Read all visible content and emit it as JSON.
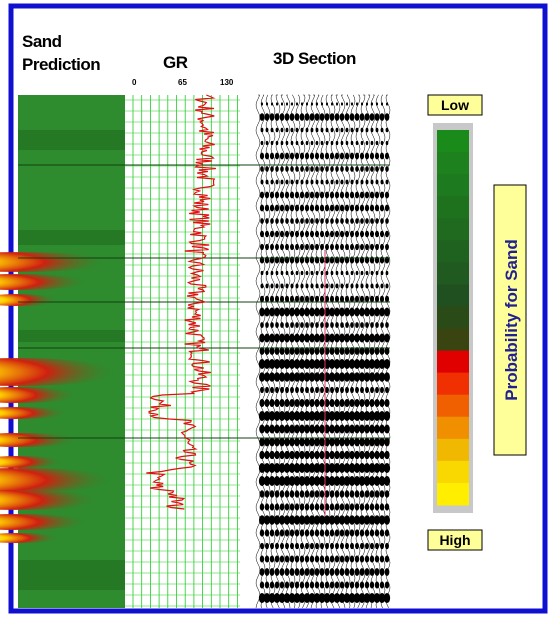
{
  "titles": {
    "sand_prediction": [
      "Sand",
      "Prediction"
    ],
    "gr": "GR",
    "section": "3D Section"
  },
  "gr_scale": [
    "0",
    "65",
    "130"
  ],
  "legend": {
    "low": "Low",
    "high": "High",
    "label": "Probability for Sand"
  }
}
